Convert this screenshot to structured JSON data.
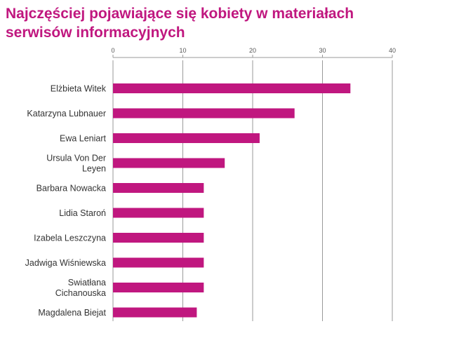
{
  "chart_data": {
    "type": "bar",
    "orientation": "horizontal",
    "title_lines": [
      "Najczęściej pojawiające się kobiety w materiałach",
      "serwisów informacyjnych"
    ],
    "categories": [
      [
        "Elżbieta Witek"
      ],
      [
        "Katarzyna Lubnauer"
      ],
      [
        "Ewa Leniart"
      ],
      [
        "Ursula Von Der",
        "Leyen"
      ],
      [
        "Barbara Nowacka"
      ],
      [
        "Lidia Staroń"
      ],
      [
        "Izabela Leszczyna"
      ],
      [
        "Jadwiga Wiśniewska"
      ],
      [
        "Swiatłana",
        "Cichanouska"
      ],
      [
        "Magdalena Biejat"
      ]
    ],
    "values": [
      34,
      26,
      21,
      16,
      13,
      13,
      13,
      13,
      13,
      12
    ],
    "xlim": [
      0,
      40
    ],
    "xticks": [
      "0",
      "10",
      "20",
      "30",
      "40"
    ],
    "grid": true,
    "axis_position": "top",
    "bar_color": "#c0177f",
    "title_color": "#c0177f"
  }
}
